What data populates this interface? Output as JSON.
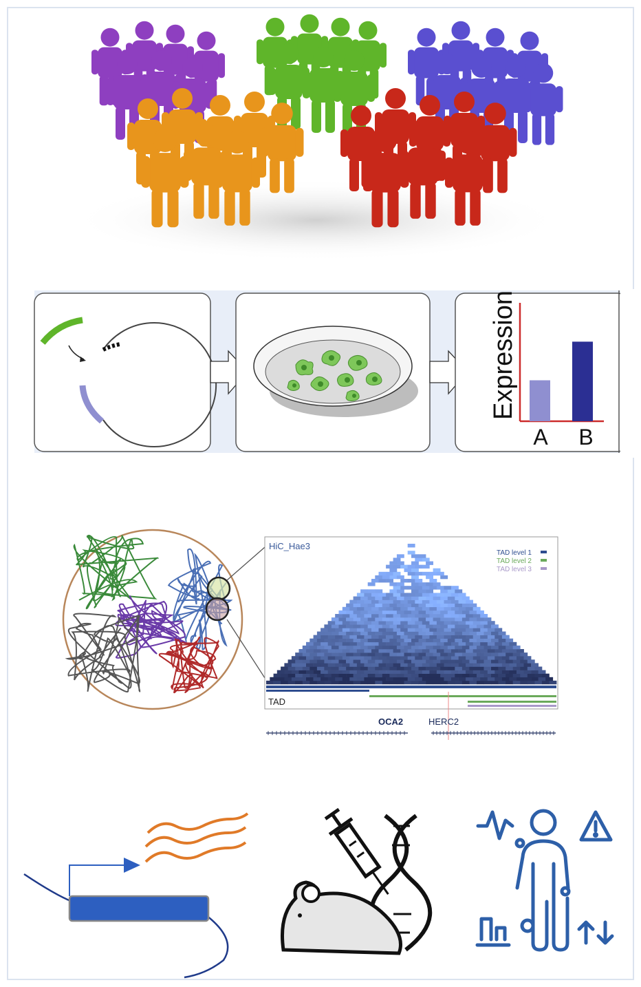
{
  "panel_assay": {
    "expression_label": "Expression",
    "bar_a_label": "A",
    "bar_b_label": "B",
    "bar_values": [
      0.35,
      0.68
    ],
    "colors": {
      "bar_a": "#8f8fd0",
      "bar_b": "#2b2f93",
      "axis": "#cc2b2b"
    }
  },
  "panel_hic": {
    "title": "HiC_Hae3",
    "legend": [
      {
        "label": "TAD level 1",
        "color": "#2e4d8f"
      },
      {
        "label": "TAD level 2",
        "color": "#6aa95a"
      },
      {
        "label": "TAD level 3",
        "color": "#a898c8"
      }
    ],
    "tad_label": "TAD",
    "gene_1": "OCA2",
    "gene_2": "HERC2"
  },
  "colors": {
    "purple": "#8e3fc0",
    "green": "#5fb52a",
    "blue": "#5a4fd0",
    "orange": "#e8951c",
    "red": "#c8281a",
    "icon_blue": "#2d5fa8",
    "wave_orange": "#e07a28"
  }
}
